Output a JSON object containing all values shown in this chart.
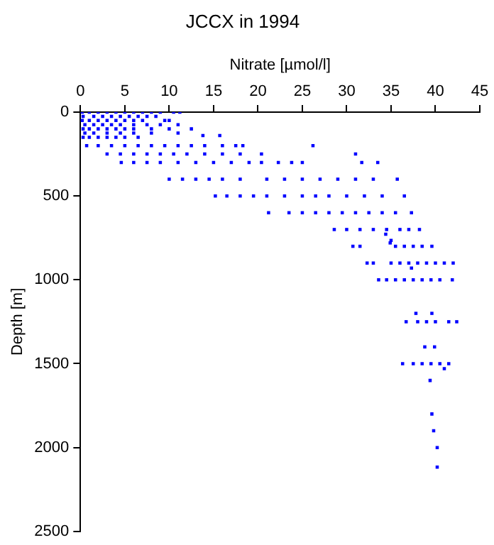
{
  "chart_data": {
    "type": "scatter",
    "title": "JCCX in 1994",
    "xlabel": "Nitrate [µmol/l]",
    "ylabel": "Depth [m]",
    "xlim": [
      0,
      45
    ],
    "xticks": [
      0,
      5,
      10,
      15,
      20,
      25,
      30,
      35,
      40,
      45
    ],
    "ylim": [
      2500,
      0
    ],
    "yticks": [
      0,
      500,
      1000,
      1500,
      2000,
      2500
    ],
    "grid": false,
    "legend": false,
    "marker": "square",
    "series": [
      {
        "color": "#0000ff",
        "x": [
          0.2,
          1,
          2,
          3,
          4,
          5,
          6,
          7,
          8,
          9,
          10.5,
          11.2,
          0.3,
          1.5,
          2.5,
          3.5,
          4.5,
          5.5,
          6.5,
          7.5,
          8.5,
          0.2,
          1,
          2,
          3,
          4,
          5,
          6,
          7,
          9.5,
          10,
          0.5,
          1.5,
          2.5,
          3.5,
          4.5,
          6,
          7.5,
          9,
          11,
          0.3,
          1,
          2,
          3,
          4,
          5,
          6,
          8,
          10,
          12.5,
          0.5,
          1.5,
          3,
          4.5,
          6,
          8,
          11,
          13.8,
          15.7,
          0.3,
          1,
          2,
          3,
          4,
          5,
          6.5,
          0.7,
          2,
          3.5,
          5,
          6.5,
          8,
          9.5,
          11,
          12.5,
          14,
          16,
          17.5,
          18.3,
          26.2,
          3,
          4.5,
          6,
          7.5,
          9,
          10.5,
          12,
          14,
          16,
          18,
          20.4,
          31,
          4.6,
          6,
          7.5,
          9,
          11,
          13,
          15,
          17,
          19,
          20.4,
          22.3,
          23.8,
          25,
          31.7,
          33.5,
          10,
          11.5,
          13,
          14.5,
          16,
          18,
          21,
          23,
          25,
          27,
          29,
          31,
          33,
          35.7,
          15.2,
          16.5,
          18,
          19.5,
          21,
          23,
          25,
          26.5,
          28,
          30,
          32,
          34,
          36.5,
          21.2,
          23.5,
          25,
          26.5,
          28,
          29.5,
          31,
          32.5,
          34,
          35.5,
          37.3,
          28.6,
          30,
          31.5,
          33,
          34.5,
          36,
          37,
          38.2,
          34.4,
          35,
          30.7,
          31.5,
          34.9,
          35.5,
          36.5,
          37.5,
          38.5,
          39.6,
          32.3,
          33,
          35,
          36,
          37,
          38,
          39,
          40,
          41,
          42,
          37.3,
          33.6,
          34.5,
          35.5,
          36.5,
          37.5,
          38.5,
          39.5,
          40.5,
          41.9,
          37.8,
          39.6,
          36.7,
          38,
          39,
          40,
          41.5,
          42.4,
          38.8,
          39.9,
          36.3,
          37.5,
          38.5,
          39.5,
          40.5,
          41.5,
          41,
          39.4,
          39.6,
          39.8,
          40.2,
          40.2
        ],
        "values": [
          0,
          0,
          0,
          0,
          0,
          0,
          0,
          0,
          0,
          0,
          0,
          0,
          25,
          25,
          25,
          25,
          25,
          25,
          25,
          25,
          25,
          50,
          50,
          50,
          50,
          50,
          50,
          50,
          50,
          50,
          50,
          75,
          75,
          75,
          75,
          75,
          75,
          75,
          75,
          75,
          100,
          100,
          100,
          100,
          100,
          100,
          100,
          100,
          100,
          100,
          125,
          125,
          125,
          125,
          125,
          125,
          125,
          140,
          140,
          150,
          150,
          150,
          150,
          150,
          150,
          150,
          200,
          200,
          200,
          200,
          200,
          200,
          200,
          200,
          200,
          200,
          200,
          200,
          200,
          200,
          250,
          250,
          250,
          250,
          250,
          250,
          250,
          250,
          250,
          250,
          250,
          250,
          300,
          300,
          300,
          300,
          300,
          300,
          300,
          300,
          300,
          300,
          300,
          300,
          300,
          300,
          300,
          400,
          400,
          400,
          400,
          400,
          400,
          400,
          400,
          400,
          400,
          400,
          400,
          400,
          400,
          500,
          500,
          500,
          500,
          500,
          500,
          500,
          500,
          500,
          500,
          500,
          500,
          500,
          600,
          600,
          600,
          600,
          600,
          600,
          600,
          600,
          600,
          600,
          600,
          700,
          700,
          700,
          700,
          700,
          700,
          700,
          700,
          728,
          765,
          800,
          800,
          780,
          800,
          800,
          800,
          800,
          800,
          900,
          900,
          900,
          900,
          900,
          900,
          900,
          900,
          900,
          900,
          930,
          1000,
          1000,
          1000,
          1000,
          1000,
          1000,
          1000,
          1000,
          1000,
          1200,
          1200,
          1250,
          1250,
          1250,
          1250,
          1250,
          1250,
          1400,
          1400,
          1500,
          1500,
          1500,
          1500,
          1500,
          1500,
          1530,
          1600,
          1800,
          1900,
          2000,
          2117
        ]
      }
    ]
  }
}
